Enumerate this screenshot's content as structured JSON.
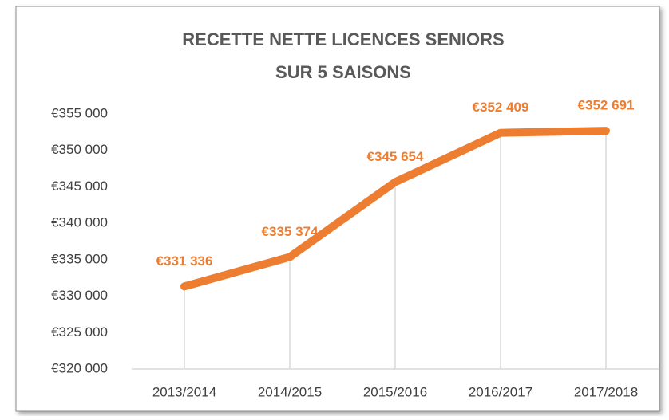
{
  "chart_data": {
    "type": "line",
    "title": [
      "RECETTE NETTE LICENCES SENIORS",
      "SUR 5 SAISONS"
    ],
    "categories": [
      "2013/2014",
      "2014/2015",
      "2015/2016",
      "2016/2017",
      "2017/2018"
    ],
    "series": [
      {
        "name": "Recette nette",
        "color": "#ED7D31",
        "values": [
          331336,
          335374,
          345654,
          352409,
          352691
        ],
        "value_labels": [
          "€331 336",
          "€335 374",
          "€345 654",
          "€352 409",
          "€352 691"
        ]
      }
    ],
    "ylim": [
      320000,
      355000
    ],
    "yticks": [
      {
        "value": 320000,
        "label": "€320 000"
      },
      {
        "value": 325000,
        "label": "€325 000"
      },
      {
        "value": 330000,
        "label": "€330 000"
      },
      {
        "value": 335000,
        "label": "€335 000"
      },
      {
        "value": 340000,
        "label": "€340 000"
      },
      {
        "value": 345000,
        "label": "€345 000"
      },
      {
        "value": 350000,
        "label": "€350 000"
      },
      {
        "value": 355000,
        "label": "€355 000"
      }
    ],
    "drop_lines": true
  }
}
